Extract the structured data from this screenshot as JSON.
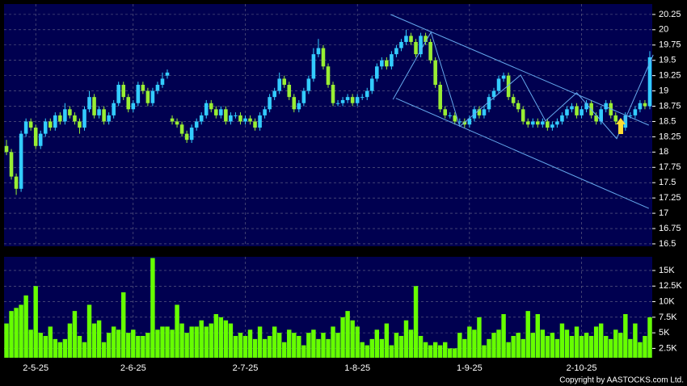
{
  "chart_data": {
    "type": "candlestick",
    "up_color": "#33ccff",
    "down_color": "#99ee33",
    "volume_color": "#66ff00",
    "line_color": "#66aaee",
    "grid": true,
    "ylim": [
      16.46,
      20.42
    ],
    "yticks": [
      16.5,
      16.75,
      17,
      17.25,
      17.5,
      17.75,
      18,
      18.25,
      18.5,
      18.75,
      19,
      19.25,
      19.5,
      19.75,
      20,
      20.25
    ],
    "vlim": [
      1000,
      17200
    ],
    "vticks": [
      {
        "value": 2500,
        "label": "2.5K"
      },
      {
        "value": 5000,
        "label": "5K"
      },
      {
        "value": 7500,
        "label": "7.5K"
      },
      {
        "value": 10000,
        "label": "10K"
      },
      {
        "value": 12500,
        "label": "12.5K"
      },
      {
        "value": 15000,
        "label": "15K"
      }
    ],
    "categories": [
      null,
      null,
      null,
      null,
      null,
      null,
      "2-5-25",
      null,
      null,
      null,
      null,
      null,
      null,
      null,
      null,
      null,
      null,
      null,
      null,
      null,
      null,
      null,
      null,
      null,
      null,
      null,
      "2-6-25",
      null,
      null,
      null,
      null,
      null,
      null,
      null,
      null,
      null,
      null,
      null,
      null,
      null,
      null,
      null,
      null,
      null,
      null,
      null,
      null,
      null,
      null,
      "2-7-25",
      null,
      null,
      null,
      null,
      null,
      null,
      null,
      null,
      null,
      null,
      null,
      null,
      null,
      null,
      null,
      null,
      null,
      null,
      null,
      null,
      null,
      null,
      "1-8-25",
      null,
      null,
      null,
      null,
      null,
      null,
      null,
      null,
      null,
      null,
      null,
      null,
      null,
      null,
      null,
      null,
      null,
      null,
      null,
      null,
      null,
      null,
      "1-9-25",
      null,
      null,
      null,
      null,
      null,
      null,
      null,
      null,
      null,
      null,
      null,
      null,
      null,
      null,
      null,
      null,
      null,
      null,
      null,
      null,
      null,
      null,
      "2-10-25",
      null,
      null,
      null,
      null,
      null,
      null,
      null,
      null,
      null,
      null,
      null,
      null,
      null,
      null
    ],
    "candles": [
      [
        18.1,
        18.2,
        17.95,
        18.0
      ],
      [
        18.0,
        18.05,
        17.55,
        17.6
      ],
      [
        17.6,
        17.65,
        17.3,
        17.4
      ],
      [
        17.4,
        18.35,
        17.35,
        18.3
      ],
      [
        18.3,
        18.55,
        18.25,
        18.5
      ],
      [
        18.5,
        18.55,
        18.35,
        18.4
      ],
      [
        18.4,
        18.45,
        18.05,
        18.1
      ],
      [
        18.1,
        18.35,
        18.05,
        18.3
      ],
      [
        18.3,
        18.55,
        18.25,
        18.5
      ],
      [
        18.5,
        18.55,
        18.35,
        18.4
      ],
      [
        18.4,
        18.65,
        18.35,
        18.6
      ],
      [
        18.6,
        18.65,
        18.45,
        18.5
      ],
      [
        18.5,
        18.8,
        18.45,
        18.7
      ],
      [
        18.7,
        18.75,
        18.55,
        18.6
      ],
      [
        18.6,
        18.65,
        18.45,
        18.5
      ],
      [
        18.5,
        18.55,
        18.3,
        18.4
      ],
      [
        18.4,
        18.75,
        18.35,
        18.7
      ],
      [
        18.7,
        19.0,
        18.65,
        18.9
      ],
      [
        18.9,
        18.95,
        18.55,
        18.6
      ],
      [
        18.6,
        18.75,
        18.55,
        18.7
      ],
      [
        18.7,
        18.75,
        18.45,
        18.5
      ],
      [
        18.5,
        18.65,
        18.45,
        18.6
      ],
      [
        18.6,
        18.85,
        18.55,
        18.8
      ],
      [
        18.8,
        19.15,
        18.75,
        19.1
      ],
      [
        19.1,
        19.15,
        18.85,
        18.9
      ],
      [
        18.9,
        18.95,
        18.65,
        18.7
      ],
      [
        18.7,
        18.85,
        18.65,
        18.8
      ],
      [
        18.8,
        19.15,
        18.75,
        19.1
      ],
      [
        19.1,
        19.15,
        18.95,
        19.0
      ],
      [
        19.0,
        19.05,
        18.75,
        18.8
      ],
      [
        18.8,
        19.05,
        18.75,
        19.0
      ],
      [
        19.0,
        19.15,
        18.95,
        19.1
      ],
      [
        19.1,
        19.3,
        19.05,
        19.2
      ],
      [
        19.25,
        19.35,
        19.2,
        19.3
      ],
      [
        18.55,
        18.6,
        18.45,
        18.5
      ],
      [
        18.5,
        18.55,
        18.4,
        18.45
      ],
      [
        18.45,
        18.5,
        18.25,
        18.3
      ],
      [
        18.3,
        18.35,
        18.15,
        18.2
      ],
      [
        18.2,
        18.45,
        18.15,
        18.4
      ],
      [
        18.4,
        18.55,
        18.35,
        18.5
      ],
      [
        18.5,
        18.65,
        18.45,
        18.6
      ],
      [
        18.6,
        18.85,
        18.55,
        18.8
      ],
      [
        18.8,
        18.85,
        18.65,
        18.7
      ],
      [
        18.7,
        18.75,
        18.55,
        18.6
      ],
      [
        18.6,
        18.75,
        18.55,
        18.7
      ],
      [
        18.7,
        18.75,
        18.45,
        18.5
      ],
      [
        18.5,
        18.65,
        18.45,
        18.6
      ],
      [
        18.6,
        18.65,
        18.55,
        18.6
      ],
      [
        18.6,
        18.65,
        18.45,
        18.5
      ],
      [
        18.5,
        18.6,
        18.45,
        18.55
      ],
      [
        18.55,
        18.6,
        18.45,
        18.5
      ],
      [
        18.5,
        18.55,
        18.35,
        18.4
      ],
      [
        18.4,
        18.65,
        18.35,
        18.6
      ],
      [
        18.6,
        18.75,
        18.55,
        18.7
      ],
      [
        18.7,
        18.95,
        18.65,
        18.9
      ],
      [
        18.9,
        19.05,
        18.85,
        19.0
      ],
      [
        19.0,
        19.3,
        18.95,
        19.2
      ],
      [
        19.2,
        19.25,
        19.05,
        19.1
      ],
      [
        19.1,
        19.15,
        18.85,
        18.9
      ],
      [
        18.9,
        18.95,
        18.65,
        18.7
      ],
      [
        18.7,
        18.85,
        18.65,
        18.8
      ],
      [
        18.8,
        19.05,
        18.75,
        19.0
      ],
      [
        19.0,
        19.25,
        18.95,
        19.2
      ],
      [
        19.2,
        19.7,
        19.15,
        19.6
      ],
      [
        19.6,
        19.85,
        19.55,
        19.7
      ],
      [
        19.7,
        19.75,
        19.35,
        19.4
      ],
      [
        19.4,
        19.45,
        19.05,
        19.1
      ],
      [
        19.1,
        19.15,
        18.75,
        18.8
      ],
      [
        18.8,
        18.85,
        18.75,
        18.8
      ],
      [
        18.8,
        18.9,
        18.75,
        18.85
      ],
      [
        18.85,
        18.95,
        18.8,
        18.9
      ],
      [
        18.9,
        18.95,
        18.75,
        18.8
      ],
      [
        18.8,
        18.95,
        18.75,
        18.9
      ],
      [
        18.9,
        18.95,
        18.85,
        18.9
      ],
      [
        18.9,
        19.05,
        18.85,
        19.0
      ],
      [
        19.0,
        19.25,
        18.95,
        19.2
      ],
      [
        19.2,
        19.45,
        19.15,
        19.4
      ],
      [
        19.4,
        19.55,
        19.35,
        19.5
      ],
      [
        19.5,
        19.55,
        19.35,
        19.4
      ],
      [
        19.4,
        19.65,
        19.35,
        19.6
      ],
      [
        19.6,
        19.75,
        19.55,
        19.7
      ],
      [
        19.7,
        19.85,
        19.65,
        19.8
      ],
      [
        19.8,
        20.0,
        19.75,
        19.9
      ],
      [
        19.9,
        19.95,
        19.75,
        19.8
      ],
      [
        19.8,
        19.85,
        19.55,
        19.6
      ],
      [
        19.6,
        19.95,
        19.55,
        19.9
      ],
      [
        19.9,
        19.95,
        19.75,
        19.8
      ],
      [
        19.8,
        19.85,
        19.45,
        19.5
      ],
      [
        19.5,
        19.55,
        19.05,
        19.1
      ],
      [
        19.1,
        19.15,
        18.65,
        18.7
      ],
      [
        18.7,
        18.75,
        18.55,
        18.6
      ],
      [
        18.6,
        18.65,
        18.55,
        18.6
      ],
      [
        18.6,
        18.65,
        18.45,
        18.5
      ],
      [
        18.5,
        18.55,
        18.45,
        18.5
      ],
      [
        18.5,
        18.55,
        18.4,
        18.45
      ],
      [
        18.45,
        18.6,
        18.4,
        18.55
      ],
      [
        18.55,
        18.75,
        18.5,
        18.7
      ],
      [
        18.7,
        18.75,
        18.55,
        18.6
      ],
      [
        18.6,
        18.75,
        18.55,
        18.7
      ],
      [
        18.7,
        18.95,
        18.65,
        18.9
      ],
      [
        18.9,
        19.05,
        18.85,
        19.0
      ],
      [
        19.0,
        19.25,
        18.95,
        19.2
      ],
      [
        19.2,
        19.3,
        19.15,
        19.25
      ],
      [
        19.25,
        19.3,
        18.85,
        18.9
      ],
      [
        18.9,
        18.95,
        18.75,
        18.8
      ],
      [
        18.8,
        18.85,
        18.65,
        18.7
      ],
      [
        18.7,
        18.75,
        18.45,
        18.5
      ],
      [
        18.5,
        18.55,
        18.4,
        18.45
      ],
      [
        18.45,
        18.55,
        18.4,
        18.5
      ],
      [
        18.5,
        18.55,
        18.4,
        18.45
      ],
      [
        18.45,
        18.55,
        18.4,
        18.5
      ],
      [
        18.5,
        18.55,
        18.35,
        18.4
      ],
      [
        18.4,
        18.5,
        18.35,
        18.45
      ],
      [
        18.45,
        18.55,
        18.4,
        18.5
      ],
      [
        18.5,
        18.65,
        18.45,
        18.6
      ],
      [
        18.6,
        18.75,
        18.55,
        18.7
      ],
      [
        18.7,
        18.8,
        18.65,
        18.75
      ],
      [
        18.75,
        18.8,
        18.55,
        18.6
      ],
      [
        18.6,
        18.75,
        18.55,
        18.7
      ],
      [
        18.7,
        18.85,
        18.65,
        18.8
      ],
      [
        18.8,
        18.85,
        18.55,
        18.6
      ],
      [
        18.6,
        18.65,
        18.45,
        18.5
      ],
      [
        18.5,
        18.75,
        18.45,
        18.7
      ],
      [
        18.7,
        18.85,
        18.65,
        18.8
      ],
      [
        18.8,
        18.85,
        18.55,
        18.6
      ],
      [
        18.6,
        18.65,
        18.45,
        18.5
      ],
      [
        18.5,
        18.55,
        18.35,
        18.4
      ],
      [
        18.4,
        18.65,
        18.35,
        18.6
      ],
      [
        18.6,
        18.65,
        18.55,
        18.6
      ],
      [
        18.6,
        18.75,
        18.55,
        18.7
      ],
      [
        18.7,
        18.85,
        18.65,
        18.8
      ],
      [
        18.8,
        18.85,
        18.7,
        18.75
      ],
      [
        18.75,
        19.65,
        18.7,
        19.55
      ]
    ],
    "volume": [
      6500,
      8500,
      9000,
      9500,
      11000,
      5500,
      12500,
      5000,
      4500,
      6000,
      4000,
      3500,
      4000,
      6500,
      8500,
      4500,
      3500,
      9500,
      6500,
      7000,
      3500,
      5000,
      6000,
      5500,
      11500,
      5000,
      5500,
      4500,
      4500,
      5000,
      17000,
      5500,
      6000,
      6000,
      5500,
      9500,
      6500,
      5000,
      6000,
      6000,
      7000,
      6000,
      6500,
      8000,
      7500,
      7000,
      6500,
      4500,
      5000,
      4500,
      5500,
      4000,
      6000,
      4000,
      4500,
      6000,
      5000,
      3500,
      5500,
      5000,
      4500,
      3000,
      5000,
      5500,
      4000,
      5000,
      4000,
      6000,
      5000,
      7500,
      8500,
      7000,
      6000,
      3500,
      3000,
      4000,
      5500,
      4000,
      6500,
      3000,
      5000,
      4500,
      7000,
      5500,
      12500,
      4500,
      3500,
      3000,
      3500,
      3000,
      3500,
      2500,
      2500,
      5000,
      4000,
      6000,
      5500,
      7500,
      3000,
      4000,
      5000,
      5500,
      8000,
      3500,
      4500,
      5000,
      4000,
      8500,
      5000,
      8000,
      5500,
      4500,
      5000,
      4000,
      6500,
      5500,
      4500,
      6000,
      4500,
      5000,
      4500,
      6000,
      6500,
      4500,
      4000,
      5500,
      5000,
      8000,
      4000,
      6500,
      3500,
      4500,
      7500
    ],
    "lines": [
      {
        "x": [
          78.8,
          131.8
        ],
        "y": [
          20.25,
          18.44
        ]
      },
      {
        "x": [
          79.9,
          131.8
        ],
        "y": [
          18.88,
          17.08
        ]
      },
      {
        "x": [
          79.3,
          87.1,
          93,
          105.5,
          110.6,
          117,
          125.2,
          132.7
        ],
        "y": [
          18.86,
          19.96,
          18.42,
          19.26,
          18.51,
          18.97,
          18.22,
          19.59
        ]
      }
    ],
    "copyright": "Copyright by AASTOCKS.com Ltd."
  }
}
